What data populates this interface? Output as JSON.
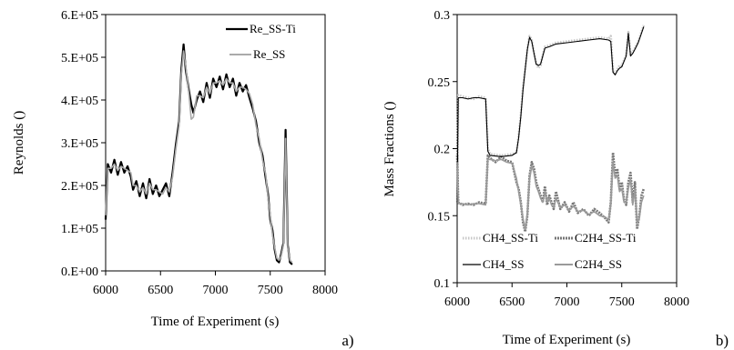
{
  "chart_data": [
    {
      "type": "line",
      "panel_label": "a)",
      "xlabel": "Time of Experiment (s)",
      "ylabel": "Reynolds ()",
      "xlim": [
        6000,
        8000
      ],
      "ylim": [
        0,
        600000
      ],
      "x_ticks": [
        6000,
        6500,
        7000,
        7500,
        8000
      ],
      "y_ticks": [
        0,
        100000,
        200000,
        300000,
        400000,
        500000,
        600000
      ],
      "y_tick_labels": [
        "0.E+00",
        "1.E+05",
        "2.E+05",
        "3.E+05",
        "4.E+05",
        "5.E+05",
        "6.E+05"
      ],
      "grid": false,
      "legend_position": "top-right",
      "series": [
        {
          "name": "Re_SS-Ti",
          "color": "#000000",
          "x": [
            6000,
            6020,
            6050,
            6080,
            6110,
            6140,
            6170,
            6200,
            6230,
            6250,
            6280,
            6310,
            6340,
            6370,
            6400,
            6430,
            6460,
            6490,
            6520,
            6550,
            6580,
            6610,
            6640,
            6670,
            6690,
            6710,
            6730,
            6760,
            6780,
            6800,
            6830,
            6860,
            6890,
            6920,
            6950,
            6980,
            7010,
            7040,
            7070,
            7100,
            7130,
            7160,
            7190,
            7220,
            7250,
            7280,
            7310,
            7340,
            7370,
            7400,
            7430,
            7460,
            7480,
            7500,
            7520,
            7540,
            7560,
            7580,
            7600,
            7620,
            7640,
            7660,
            7680,
            7700
          ],
          "y": [
            120000,
            250000,
            230000,
            260000,
            225000,
            255000,
            230000,
            245000,
            220000,
            190000,
            210000,
            175000,
            205000,
            170000,
            215000,
            180000,
            200000,
            175000,
            190000,
            205000,
            175000,
            230000,
            295000,
            350000,
            470000,
            530000,
            470000,
            420000,
            390000,
            370000,
            400000,
            420000,
            395000,
            440000,
            405000,
            450000,
            430000,
            455000,
            425000,
            460000,
            430000,
            450000,
            410000,
            440000,
            420000,
            435000,
            405000,
            380000,
            350000,
            300000,
            270000,
            215000,
            180000,
            120000,
            95000,
            50000,
            25000,
            20000,
            40000,
            65000,
            330000,
            60000,
            20000,
            15000
          ]
        },
        {
          "name": "Re_SS",
          "color": "#aaaaaa",
          "x": [
            6000,
            6020,
            6050,
            6080,
            6110,
            6140,
            6170,
            6200,
            6230,
            6250,
            6280,
            6310,
            6340,
            6370,
            6400,
            6430,
            6460,
            6490,
            6520,
            6550,
            6580,
            6610,
            6640,
            6670,
            6690,
            6710,
            6730,
            6760,
            6780,
            6800,
            6830,
            6860,
            6890,
            6920,
            6950,
            6980,
            7010,
            7040,
            7070,
            7100,
            7130,
            7160,
            7190,
            7220,
            7250,
            7280,
            7310,
            7340,
            7370,
            7400,
            7430,
            7460,
            7480,
            7500,
            7520,
            7540,
            7560,
            7580,
            7600,
            7620,
            7640,
            7660,
            7680,
            7700
          ],
          "y": [
            130000,
            240000,
            240000,
            250000,
            235000,
            245000,
            240000,
            235000,
            230000,
            200000,
            200000,
            185000,
            195000,
            180000,
            205000,
            190000,
            190000,
            185000,
            180000,
            195000,
            185000,
            220000,
            285000,
            340000,
            460000,
            515000,
            480000,
            410000,
            355000,
            360000,
            410000,
            410000,
            405000,
            430000,
            415000,
            440000,
            440000,
            445000,
            435000,
            450000,
            440000,
            440000,
            420000,
            430000,
            430000,
            425000,
            415000,
            390000,
            340000,
            310000,
            260000,
            225000,
            170000,
            130000,
            85000,
            55000,
            30000,
            25000,
            35000,
            60000,
            310000,
            55000,
            25000,
            20000
          ]
        }
      ]
    },
    {
      "type": "line",
      "panel_label": "b)",
      "xlabel": "Time of Experiment (s)",
      "ylabel": "Mass Fractions ()",
      "xlim": [
        6000,
        8000
      ],
      "ylim": [
        0.1,
        0.3
      ],
      "x_ticks": [
        6000,
        6500,
        7000,
        7500,
        8000
      ],
      "y_ticks": [
        0.1,
        0.15,
        0.2,
        0.25,
        0.3
      ],
      "y_tick_labels": [
        "0.1",
        "0.15",
        "0.2",
        "0.25",
        "0.3"
      ],
      "grid": false,
      "legend_position": "bottom",
      "series": [
        {
          "name": "CH4_SS-Ti",
          "color": "#c8c8c8",
          "x": [
            6000,
            6010,
            6050,
            6100,
            6150,
            6200,
            6260,
            6280,
            6300,
            6400,
            6500,
            6540,
            6560,
            6580,
            6600,
            6620,
            6640,
            6660,
            6680,
            6700,
            6720,
            6740,
            6760,
            6780,
            6800,
            6840,
            6900,
            7000,
            7100,
            7200,
            7300,
            7380,
            7400,
            7420,
            7440,
            7460,
            7480,
            7500,
            7520,
            7540,
            7560,
            7580,
            7600,
            7620,
            7650,
            7700
          ],
          "y": [
            0.16,
            0.24,
            0.239,
            0.238,
            0.237,
            0.239,
            0.238,
            0.2,
            0.196,
            0.195,
            0.196,
            0.197,
            0.21,
            0.225,
            0.245,
            0.26,
            0.275,
            0.284,
            0.281,
            0.272,
            0.264,
            0.26,
            0.262,
            0.27,
            0.276,
            0.277,
            0.279,
            0.28,
            0.281,
            0.282,
            0.283,
            0.282,
            0.284,
            0.258,
            0.256,
            0.259,
            0.262,
            0.262,
            0.266,
            0.27,
            0.287,
            0.27,
            0.272,
            0.275,
            0.28,
            0.292
          ]
        },
        {
          "name": "C2H4_SS-Ti",
          "color": "#777777",
          "x": [
            6000,
            6010,
            6050,
            6100,
            6150,
            6200,
            6260,
            6280,
            6300,
            6350,
            6400,
            6450,
            6500,
            6540,
            6560,
            6580,
            6600,
            6620,
            6640,
            6660,
            6680,
            6700,
            6720,
            6740,
            6760,
            6780,
            6800,
            6820,
            6840,
            6860,
            6880,
            6900,
            6940,
            6980,
            7020,
            7060,
            7100,
            7150,
            7200,
            7250,
            7300,
            7350,
            7380,
            7400,
            7420,
            7440,
            7460,
            7480,
            7500,
            7520,
            7540,
            7560,
            7580,
            7600,
            7620,
            7640,
            7660,
            7680,
            7700
          ],
          "y": [
            0.195,
            0.16,
            0.158,
            0.159,
            0.158,
            0.16,
            0.159,
            0.195,
            0.193,
            0.19,
            0.194,
            0.191,
            0.19,
            0.175,
            0.17,
            0.16,
            0.145,
            0.138,
            0.15,
            0.18,
            0.19,
            0.185,
            0.175,
            0.17,
            0.165,
            0.16,
            0.172,
            0.158,
            0.165,
            0.16,
            0.155,
            0.168,
            0.155,
            0.16,
            0.153,
            0.16,
            0.152,
            0.155,
            0.15,
            0.155,
            0.152,
            0.148,
            0.145,
            0.16,
            0.197,
            0.18,
            0.185,
            0.17,
            0.175,
            0.162,
            0.158,
            0.175,
            0.182,
            0.16,
            0.175,
            0.14,
            0.15,
            0.165,
            0.17
          ]
        },
        {
          "name": "CH4_SS",
          "color": "#000000",
          "x": [
            6000,
            6010,
            6050,
            6100,
            6150,
            6200,
            6260,
            6280,
            6300,
            6400,
            6500,
            6540,
            6560,
            6580,
            6600,
            6620,
            6640,
            6660,
            6680,
            6700,
            6720,
            6740,
            6760,
            6780,
            6800,
            6840,
            6900,
            7000,
            7100,
            7200,
            7300,
            7380,
            7400,
            7420,
            7440,
            7460,
            7480,
            7500,
            7520,
            7540,
            7560,
            7580,
            7600,
            7620,
            7650,
            7700
          ],
          "y": [
            0.16,
            0.238,
            0.238,
            0.237,
            0.238,
            0.238,
            0.237,
            0.198,
            0.195,
            0.194,
            0.195,
            0.197,
            0.208,
            0.224,
            0.244,
            0.259,
            0.274,
            0.283,
            0.28,
            0.271,
            0.263,
            0.262,
            0.263,
            0.269,
            0.275,
            0.276,
            0.278,
            0.279,
            0.28,
            0.281,
            0.282,
            0.281,
            0.28,
            0.257,
            0.255,
            0.258,
            0.26,
            0.261,
            0.265,
            0.269,
            0.286,
            0.269,
            0.271,
            0.274,
            0.279,
            0.291
          ]
        },
        {
          "name": "C2H4_SS",
          "color": "#9a9a9a",
          "x": [
            6000,
            6010,
            6050,
            6100,
            6150,
            6200,
            6260,
            6280,
            6300,
            6350,
            6400,
            6450,
            6500,
            6540,
            6560,
            6580,
            6600,
            6620,
            6640,
            6660,
            6680,
            6700,
            6720,
            6740,
            6760,
            6780,
            6800,
            6820,
            6840,
            6860,
            6880,
            6900,
            6940,
            6980,
            7020,
            7060,
            7100,
            7150,
            7200,
            7250,
            7300,
            7350,
            7380,
            7400,
            7420,
            7440,
            7460,
            7480,
            7500,
            7520,
            7540,
            7560,
            7580,
            7600,
            7620,
            7640,
            7660,
            7680,
            7700
          ],
          "y": [
            0.19,
            0.159,
            0.159,
            0.158,
            0.159,
            0.159,
            0.158,
            0.192,
            0.192,
            0.191,
            0.192,
            0.19,
            0.189,
            0.178,
            0.168,
            0.158,
            0.148,
            0.14,
            0.152,
            0.177,
            0.187,
            0.182,
            0.172,
            0.168,
            0.163,
            0.16,
            0.168,
            0.16,
            0.163,
            0.158,
            0.156,
            0.163,
            0.156,
            0.158,
            0.154,
            0.157,
            0.153,
            0.154,
            0.151,
            0.153,
            0.15,
            0.149,
            0.147,
            0.158,
            0.19,
            0.178,
            0.18,
            0.168,
            0.17,
            0.16,
            0.16,
            0.17,
            0.178,
            0.158,
            0.17,
            0.145,
            0.148,
            0.16,
            0.165
          ]
        }
      ]
    }
  ]
}
